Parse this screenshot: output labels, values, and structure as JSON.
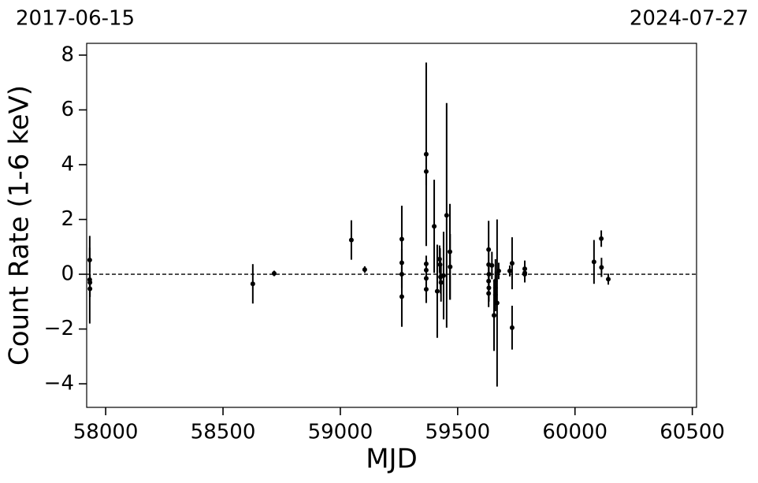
{
  "chart_data": {
    "type": "errorbar",
    "top_left_label": "2017-06-15",
    "top_right_label": "2024-07-27",
    "xlabel": "MJD",
    "ylabel": "Count Rate (1-6 keV)",
    "xlim": [
      57919,
      60518
    ],
    "ylim": [
      -4.86,
      8.43
    ],
    "xticks": [
      58000,
      58500,
      59000,
      59500,
      60000,
      60500
    ],
    "yticks": [
      {
        "value": -4,
        "label": "−4"
      },
      {
        "value": -2,
        "label": "−2"
      },
      0,
      2,
      4,
      6,
      8
    ],
    "hline": 0,
    "color": "#000000",
    "x": [
      57932,
      57932,
      57933,
      57933,
      58627,
      58718,
      59047,
      59104,
      59262,
      59262,
      59262,
      59262,
      59366,
      59366,
      59366,
      59366,
      59366,
      59366,
      59400,
      59413,
      59423,
      59425,
      59427,
      59429,
      59440,
      59453,
      59467,
      59468,
      59632,
      59632,
      59632,
      59632,
      59633,
      59633,
      59646,
      59655,
      59661,
      59661,
      59661,
      59668,
      59675,
      59722,
      59732,
      59732,
      59786,
      59786,
      59786,
      60081,
      60112,
      60113,
      60142
    ],
    "y": [
      0.52,
      -0.2,
      -0.3,
      -0.53,
      -0.35,
      0.03,
      1.25,
      0.17,
      1.28,
      0.42,
      0.0,
      -0.82,
      4.38,
      3.75,
      0.38,
      0.15,
      -0.15,
      -0.55,
      1.75,
      -0.62,
      0.55,
      0.35,
      -0.1,
      -0.3,
      -0.05,
      2.15,
      0.82,
      0.27,
      0.9,
      0.35,
      -0.25,
      -0.7,
      0.0,
      -0.5,
      0.32,
      -1.5,
      -0.25,
      -0.5,
      -0.75,
      -1.05,
      0.12,
      0.12,
      0.4,
      -1.95,
      0.2,
      0.0,
      0.05,
      0.45,
      1.3,
      0.25,
      -0.18
    ],
    "err": [
      0.45,
      1.6,
      0.3,
      0.3,
      0.72,
      0.1,
      0.72,
      0.12,
      1.22,
      0.5,
      0.5,
      1.1,
      3.35,
      0.5,
      0.3,
      0.3,
      0.3,
      0.5,
      1.7,
      1.7,
      0.5,
      0.6,
      0.6,
      0.7,
      1.6,
      4.1,
      1.75,
      1.2,
      1.05,
      0.6,
      0.5,
      0.5,
      0.4,
      0.5,
      0.5,
      1.3,
      0.8,
      0.6,
      0.6,
      3.05,
      0.3,
      0.2,
      0.95,
      0.8,
      0.3,
      0.3,
      0.2,
      0.8,
      0.3,
      0.35,
      0.2
    ]
  }
}
